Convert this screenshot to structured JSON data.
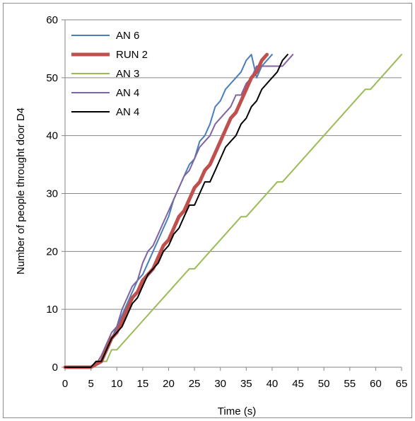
{
  "chart_data": {
    "type": "line",
    "title": "",
    "xlabel": "Time (s)",
    "ylabel": "Number of people throught door D4",
    "xlim": [
      0,
      65
    ],
    "ylim": [
      0,
      60
    ],
    "xticks": [
      "0",
      "5",
      "10",
      "15",
      "20",
      "25",
      "30",
      "35",
      "40",
      "45",
      "50",
      "55",
      "60",
      "65"
    ],
    "yticks": [
      "0",
      "10",
      "20",
      "30",
      "40",
      "50",
      "60"
    ],
    "grid": "horizontal",
    "legend": "top-left",
    "series": [
      {
        "name": "AN 6",
        "color": "#4a7ebb",
        "width": 2,
        "points": [
          [
            0,
            0
          ],
          [
            5,
            0
          ],
          [
            6,
            0.5
          ],
          [
            7,
            1
          ],
          [
            8,
            4
          ],
          [
            9,
            5
          ],
          [
            10,
            7
          ],
          [
            11,
            9
          ],
          [
            12,
            11
          ],
          [
            13,
            13
          ],
          [
            14,
            15
          ],
          [
            15,
            16
          ],
          [
            16,
            18
          ],
          [
            17,
            20
          ],
          [
            18,
            22
          ],
          [
            19,
            24
          ],
          [
            20,
            26
          ],
          [
            21,
            29
          ],
          [
            22,
            31
          ],
          [
            23,
            33
          ],
          [
            24,
            35
          ],
          [
            25,
            36
          ],
          [
            26,
            39
          ],
          [
            27,
            40
          ],
          [
            28,
            42
          ],
          [
            29,
            45
          ],
          [
            30,
            46
          ],
          [
            31,
            48
          ],
          [
            32,
            49
          ],
          [
            33,
            50
          ],
          [
            34,
            51
          ],
          [
            35,
            53
          ],
          [
            36,
            54
          ],
          [
            37,
            50
          ],
          [
            38,
            52
          ],
          [
            39,
            53
          ],
          [
            40,
            54
          ]
        ]
      },
      {
        "name": "RUN 2",
        "color": "#c0504d",
        "width": 5,
        "points": [
          [
            0,
            0
          ],
          [
            5,
            0
          ],
          [
            6,
            0.5
          ],
          [
            7,
            1
          ],
          [
            8,
            3
          ],
          [
            9,
            5
          ],
          [
            10,
            6
          ],
          [
            11,
            8
          ],
          [
            12,
            10
          ],
          [
            13,
            12
          ],
          [
            14,
            13
          ],
          [
            15,
            15
          ],
          [
            16,
            16
          ],
          [
            17,
            17
          ],
          [
            18,
            19
          ],
          [
            19,
            21
          ],
          [
            20,
            22
          ],
          [
            21,
            24
          ],
          [
            22,
            26
          ],
          [
            23,
            27
          ],
          [
            24,
            29
          ],
          [
            25,
            31
          ],
          [
            26,
            32
          ],
          [
            27,
            34
          ],
          [
            28,
            35
          ],
          [
            29,
            37
          ],
          [
            30,
            39
          ],
          [
            31,
            41
          ],
          [
            32,
            43
          ],
          [
            33,
            44
          ],
          [
            34,
            46
          ],
          [
            35,
            48
          ],
          [
            36,
            50
          ],
          [
            37,
            51
          ],
          [
            38,
            53
          ],
          [
            39,
            54
          ]
        ]
      },
      {
        "name": "AN 3",
        "color": "#9bbb59",
        "width": 2,
        "points": [
          [
            0,
            0
          ],
          [
            5,
            0
          ],
          [
            6,
            0.5
          ],
          [
            7,
            1
          ],
          [
            8,
            1
          ],
          [
            9,
            3
          ],
          [
            10,
            3
          ],
          [
            15,
            8
          ],
          [
            20,
            13
          ],
          [
            24,
            17
          ],
          [
            25,
            17
          ],
          [
            28,
            20
          ],
          [
            33,
            25
          ],
          [
            34,
            26
          ],
          [
            35,
            26
          ],
          [
            40,
            31
          ],
          [
            41,
            32
          ],
          [
            42,
            32
          ],
          [
            58,
            48
          ],
          [
            59,
            48
          ],
          [
            65,
            54
          ]
        ]
      },
      {
        "name": "AN 4",
        "color": "#8064a2",
        "width": 2,
        "points": [
          [
            0,
            0
          ],
          [
            5,
            0
          ],
          [
            6,
            0.5
          ],
          [
            7,
            2
          ],
          [
            8,
            4
          ],
          [
            9,
            6
          ],
          [
            10,
            7
          ],
          [
            11,
            10
          ],
          [
            12,
            12
          ],
          [
            13,
            14
          ],
          [
            14,
            15
          ],
          [
            15,
            18
          ],
          [
            16,
            20
          ],
          [
            17,
            21
          ],
          [
            18,
            23
          ],
          [
            19,
            25
          ],
          [
            20,
            27
          ],
          [
            21,
            29
          ],
          [
            22,
            31
          ],
          [
            23,
            33
          ],
          [
            24,
            34
          ],
          [
            25,
            36
          ],
          [
            26,
            38
          ],
          [
            27,
            39
          ],
          [
            28,
            40
          ],
          [
            29,
            42
          ],
          [
            30,
            43
          ],
          [
            31,
            44
          ],
          [
            32,
            45
          ],
          [
            33,
            47
          ],
          [
            34,
            47
          ],
          [
            35,
            49
          ],
          [
            36,
            50
          ],
          [
            37,
            52
          ],
          [
            38,
            52
          ],
          [
            39,
            52
          ],
          [
            40,
            52
          ],
          [
            41,
            52
          ],
          [
            42,
            52
          ],
          [
            43,
            53
          ],
          [
            44,
            54
          ]
        ]
      },
      {
        "name": "AN 4",
        "color": "#000000",
        "width": 2,
        "points": [
          [
            0,
            0
          ],
          [
            5,
            0
          ],
          [
            6,
            1
          ],
          [
            7,
            1
          ],
          [
            8,
            3
          ],
          [
            9,
            5
          ],
          [
            10,
            6
          ],
          [
            11,
            7
          ],
          [
            12,
            9
          ],
          [
            13,
            11
          ],
          [
            14,
            12
          ],
          [
            15,
            14
          ],
          [
            16,
            16
          ],
          [
            17,
            17
          ],
          [
            18,
            18
          ],
          [
            19,
            20
          ],
          [
            20,
            21
          ],
          [
            21,
            23
          ],
          [
            22,
            24
          ],
          [
            23,
            26
          ],
          [
            24,
            28
          ],
          [
            25,
            28
          ],
          [
            26,
            30
          ],
          [
            27,
            32
          ],
          [
            28,
            32
          ],
          [
            29,
            34
          ],
          [
            30,
            36
          ],
          [
            31,
            38
          ],
          [
            32,
            39
          ],
          [
            33,
            40
          ],
          [
            34,
            42
          ],
          [
            35,
            43
          ],
          [
            36,
            45
          ],
          [
            37,
            46
          ],
          [
            38,
            48
          ],
          [
            39,
            49
          ],
          [
            40,
            50
          ],
          [
            41,
            51
          ],
          [
            42,
            53
          ],
          [
            43,
            54
          ]
        ]
      }
    ]
  }
}
